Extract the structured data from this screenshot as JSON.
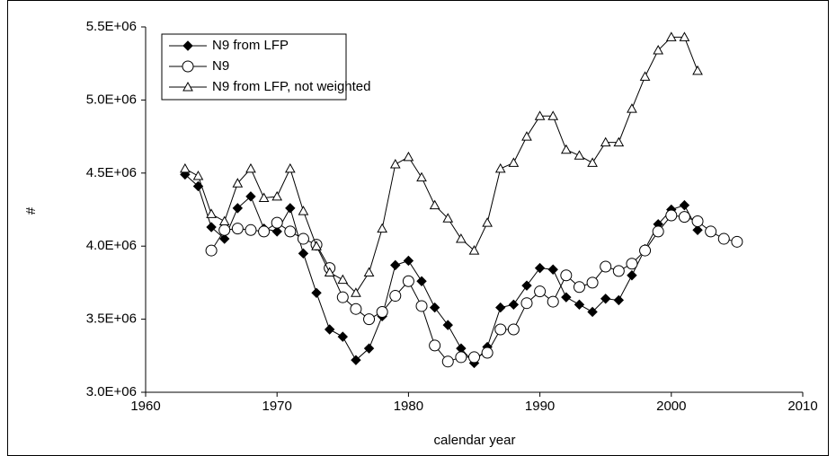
{
  "chart_data": {
    "type": "line",
    "x_label": "calendar year",
    "y_label": "#",
    "xlim": [
      1960,
      2010
    ],
    "xticks": [
      1960,
      1970,
      1980,
      1990,
      2000,
      2010
    ],
    "ylim": [
      3000000,
      5500000
    ],
    "yticks": [
      {
        "value": 3000000,
        "label": "3.0E+06"
      },
      {
        "value": 3500000,
        "label": "3.5E+06"
      },
      {
        "value": 4000000,
        "label": "4.0E+06"
      },
      {
        "value": 4500000,
        "label": "4.5E+06"
      },
      {
        "value": 5000000,
        "label": "5.0E+06"
      },
      {
        "value": 5500000,
        "label": "5.5E+06"
      }
    ],
    "legend": "top-left",
    "series": [
      {
        "name": "N9 from LFP",
        "color": "#000000",
        "marker": "diamond",
        "x": [
          1963,
          1964,
          1965,
          1966,
          1967,
          1968,
          1969,
          1970,
          1971,
          1972,
          1973,
          1974,
          1975,
          1976,
          1977,
          1978,
          1979,
          1980,
          1981,
          1982,
          1983,
          1984,
          1985,
          1986,
          1987,
          1988,
          1989,
          1990,
          1991,
          1992,
          1993,
          1994,
          1995,
          1996,
          1997,
          1998,
          1999,
          2000,
          2001,
          2002
        ],
        "values": [
          4490000,
          4410000,
          4130000,
          4050000,
          4260000,
          4340000,
          4120000,
          4100000,
          4260000,
          3950000,
          3680000,
          3430000,
          3380000,
          3220000,
          3300000,
          3520000,
          3870000,
          3900000,
          3760000,
          3580000,
          3460000,
          3300000,
          3200000,
          3310000,
          3580000,
          3600000,
          3730000,
          3850000,
          3840000,
          3650000,
          3600000,
          3550000,
          3640000,
          3630000,
          3800000,
          3980000,
          4150000,
          4250000,
          4280000,
          4110000
        ]
      },
      {
        "name": "N9",
        "color": "#000000",
        "marker": "circle",
        "x": [
          1965,
          1966,
          1967,
          1968,
          1969,
          1970,
          1971,
          1972,
          1973,
          1974,
          1975,
          1976,
          1977,
          1978,
          1979,
          1980,
          1981,
          1982,
          1983,
          1984,
          1985,
          1986,
          1987,
          1988,
          1989,
          1990,
          1991,
          1992,
          1993,
          1994,
          1995,
          1996,
          1997,
          1998,
          1999,
          2000,
          2001,
          2002,
          2003,
          2004,
          2005
        ],
        "values": [
          3970000,
          4110000,
          4120000,
          4110000,
          4100000,
          4160000,
          4100000,
          4050000,
          4010000,
          3850000,
          3650000,
          3570000,
          3500000,
          3550000,
          3660000,
          3760000,
          3590000,
          3320000,
          3210000,
          3240000,
          3240000,
          3270000,
          3430000,
          3430000,
          3610000,
          3690000,
          3620000,
          3800000,
          3720000,
          3750000,
          3860000,
          3830000,
          3880000,
          3970000,
          4100000,
          4210000,
          4200000,
          4170000,
          4100000,
          4050000,
          4030000
        ]
      },
      {
        "name": "N9 from LFP, not weighted",
        "color": "#000000",
        "marker": "triangle",
        "x": [
          1963,
          1964,
          1965,
          1966,
          1967,
          1968,
          1969,
          1970,
          1971,
          1972,
          1973,
          1974,
          1975,
          1976,
          1977,
          1978,
          1979,
          1980,
          1981,
          1982,
          1983,
          1984,
          1985,
          1986,
          1987,
          1988,
          1989,
          1990,
          1991,
          1992,
          1993,
          1994,
          1995,
          1996,
          1997,
          1998,
          1999,
          2000,
          2001,
          2002
        ],
        "values": [
          4530000,
          4480000,
          4220000,
          4170000,
          4430000,
          4530000,
          4330000,
          4340000,
          4530000,
          4240000,
          4000000,
          3820000,
          3770000,
          3680000,
          3820000,
          4120000,
          4560000,
          4610000,
          4470000,
          4280000,
          4190000,
          4050000,
          3970000,
          4160000,
          4530000,
          4570000,
          4750000,
          4890000,
          4890000,
          4660000,
          4620000,
          4570000,
          4710000,
          4710000,
          4940000,
          5160000,
          5340000,
          5430000,
          5430000,
          5200000
        ]
      }
    ]
  }
}
